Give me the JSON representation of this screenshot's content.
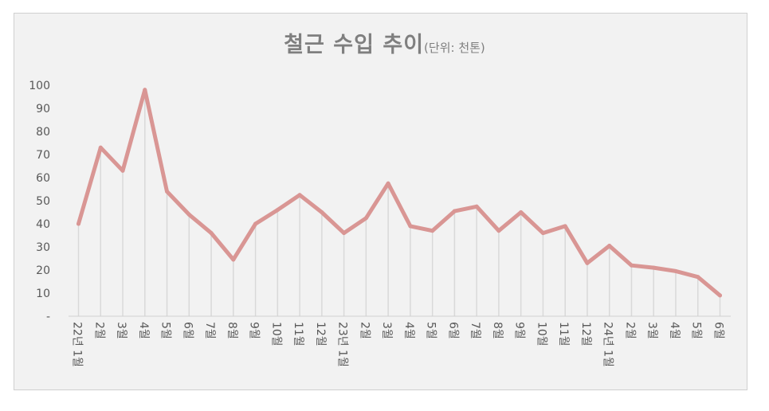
{
  "chart_data": {
    "type": "line",
    "title": "철근 수입 추이",
    "unit_note": "(단위: 천톤)",
    "xlabel": "",
    "ylabel": "",
    "ylim": [
      0,
      100
    ],
    "y_ticks": [
      "-",
      "10",
      "20",
      "30",
      "40",
      "50",
      "60",
      "70",
      "80",
      "90",
      "100"
    ],
    "categories": [
      "22년 1월",
      "2월",
      "3월",
      "4월",
      "5월",
      "6월",
      "7월",
      "8월",
      "9월",
      "10월",
      "11월",
      "12월",
      "23년 1월",
      "2월",
      "3월",
      "4월",
      "5월",
      "6월",
      "7월",
      "8월",
      "9월",
      "10월",
      "11월",
      "12월",
      "24년 1월",
      "2월",
      "3월",
      "4월",
      "5월",
      "6월"
    ],
    "series": [
      {
        "values": [
          40,
          73,
          63,
          98,
          54,
          44,
          36,
          24.5,
          40,
          46,
          52.5,
          45,
          36,
          42.5,
          57.5,
          39,
          37,
          45.5,
          47.5,
          37,
          45,
          36,
          39,
          23,
          30.5,
          22,
          21,
          19.5,
          17,
          9
        ]
      }
    ],
    "grid": false,
    "drop_lines": true,
    "legend": "none",
    "colors": {
      "line": "#d99694",
      "drop_line": "#d9d9d9",
      "axis": "#d0d0d0"
    }
  }
}
